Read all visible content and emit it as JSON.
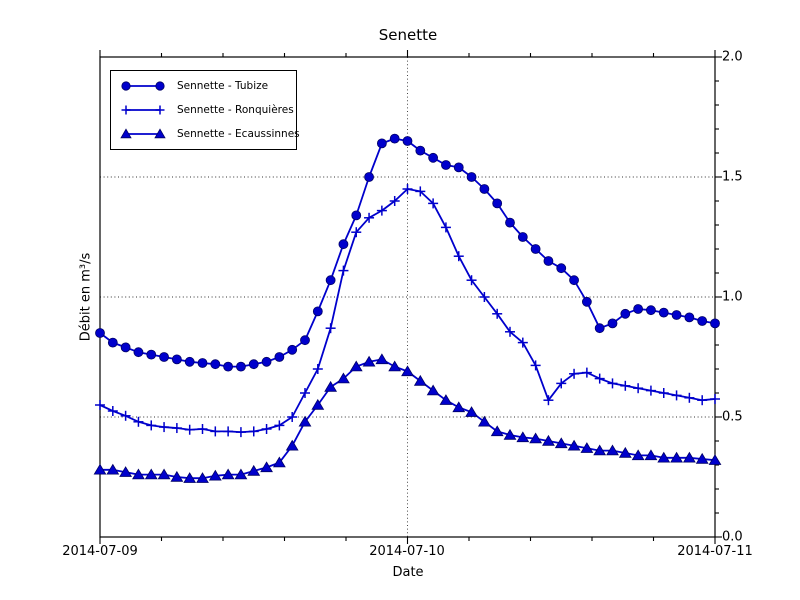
{
  "chart_data": {
    "type": "line",
    "title": "Senette",
    "xlabel": "Date",
    "ylabel": "Débit en m³/s",
    "x_unit": "hours since 2014-07-09 00:00",
    "xlim": [
      0,
      48
    ],
    "ylim": [
      0,
      2
    ],
    "xticks": {
      "positions": [
        0,
        24,
        48
      ],
      "labels": [
        "2014-07-09",
        "2014-07-10",
        "2014-07-11"
      ]
    },
    "yticks": {
      "side": "right",
      "positions": [
        0,
        0.5,
        1.0,
        1.5,
        2.0
      ],
      "labels": [
        "0.0",
        "0.5",
        "1.0",
        "1.5",
        "2.0"
      ]
    },
    "minor_x_step_hours": 4.8,
    "minor_y_step": 0.1,
    "grid": {
      "style": "dotted",
      "horizontal_at": [
        0.5,
        1.0,
        1.5
      ],
      "vertical_at_hours": [
        24
      ]
    },
    "legend_position": "upper left",
    "line_color": "#0000cc",
    "marker_edge_color": "#000066",
    "series": [
      {
        "name": "Sennette - Tubize",
        "marker": "circle",
        "x_hours": [
          0,
          1,
          2,
          3,
          4,
          5,
          6,
          7,
          8,
          9,
          10,
          11,
          12,
          13,
          14,
          15,
          16,
          17,
          18,
          19,
          20,
          21,
          22,
          23,
          24,
          25,
          26,
          27,
          28,
          29,
          30,
          31,
          32,
          33,
          34,
          35,
          36,
          37,
          38,
          39,
          40,
          41,
          42,
          43,
          44,
          45,
          46,
          47,
          48
        ],
        "values": [
          0.85,
          0.81,
          0.79,
          0.77,
          0.76,
          0.75,
          0.74,
          0.73,
          0.725,
          0.72,
          0.71,
          0.71,
          0.72,
          0.73,
          0.75,
          0.78,
          0.82,
          0.94,
          1.07,
          1.22,
          1.34,
          1.5,
          1.64,
          1.66,
          1.65,
          1.61,
          1.58,
          1.55,
          1.54,
          1.5,
          1.45,
          1.39,
          1.31,
          1.25,
          1.2,
          1.15,
          1.12,
          1.07,
          0.98,
          0.87,
          0.89,
          0.93,
          0.95,
          0.945,
          0.935,
          0.925,
          0.915,
          0.9,
          0.89
        ]
      },
      {
        "name": "Sennette - Ronquières",
        "marker": "plus",
        "x_hours": [
          0,
          1,
          2,
          3,
          4,
          5,
          6,
          7,
          8,
          9,
          10,
          11,
          12,
          13,
          14,
          15,
          16,
          17,
          18,
          19,
          20,
          21,
          22,
          23,
          24,
          25,
          26,
          27,
          28,
          29,
          30,
          31,
          32,
          33,
          34,
          35,
          36,
          37,
          38,
          39,
          40,
          41,
          42,
          43,
          44,
          45,
          46,
          47,
          48
        ],
        "values": [
          0.55,
          0.525,
          0.505,
          0.48,
          0.465,
          0.458,
          0.454,
          0.447,
          0.45,
          0.44,
          0.44,
          0.437,
          0.44,
          0.45,
          0.465,
          0.5,
          0.6,
          0.7,
          0.87,
          1.11,
          1.27,
          1.33,
          1.36,
          1.4,
          1.45,
          1.44,
          1.39,
          1.29,
          1.17,
          1.07,
          1.0,
          0.93,
          0.855,
          0.81,
          0.715,
          0.57,
          0.64,
          0.68,
          0.685,
          0.66,
          0.64,
          0.63,
          0.62,
          0.61,
          0.6,
          0.59,
          0.58,
          0.57,
          0.575
        ]
      },
      {
        "name": "Sennette - Ecaussinnes",
        "marker": "triangle",
        "x_hours": [
          0,
          1,
          2,
          3,
          4,
          5,
          6,
          7,
          8,
          9,
          10,
          11,
          12,
          13,
          14,
          15,
          16,
          17,
          18,
          19,
          20,
          21,
          22,
          23,
          24,
          25,
          26,
          27,
          28,
          29,
          30,
          31,
          32,
          33,
          34,
          35,
          36,
          37,
          38,
          39,
          40,
          41,
          42,
          43,
          44,
          45,
          46,
          47,
          48
        ],
        "values": [
          0.28,
          0.28,
          0.27,
          0.26,
          0.26,
          0.26,
          0.25,
          0.245,
          0.245,
          0.255,
          0.26,
          0.26,
          0.275,
          0.29,
          0.31,
          0.38,
          0.48,
          0.55,
          0.625,
          0.66,
          0.71,
          0.73,
          0.74,
          0.71,
          0.69,
          0.65,
          0.61,
          0.57,
          0.54,
          0.52,
          0.48,
          0.44,
          0.425,
          0.415,
          0.41,
          0.4,
          0.39,
          0.38,
          0.37,
          0.36,
          0.36,
          0.35,
          0.34,
          0.34,
          0.33,
          0.33,
          0.33,
          0.325,
          0.32
        ]
      }
    ]
  }
}
